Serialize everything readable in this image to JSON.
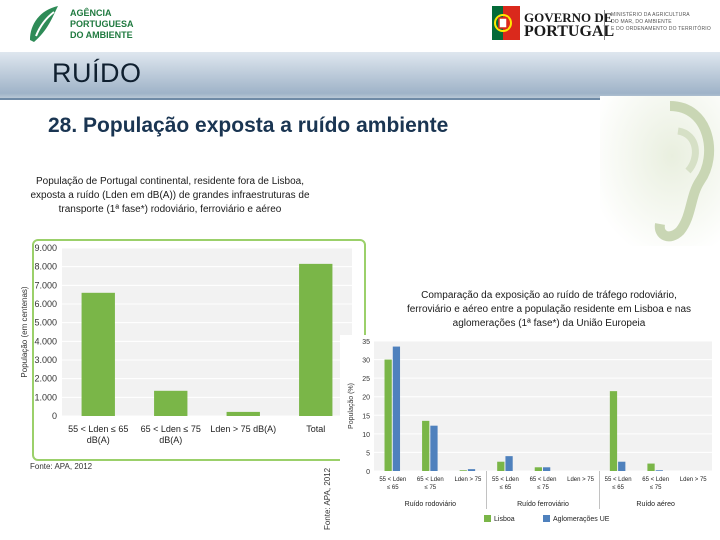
{
  "header": {
    "apa_name_lines": [
      "AGÊNCIA",
      "PORTUGUESA",
      "DO AMBIENTE"
    ],
    "gov_name_lines": [
      "GOVERNO DE",
      "PORTUGAL"
    ],
    "ministry_lines": [
      "MINISTÉRIO DA AGRICULTURA",
      "DO MAR, DO AMBIENTE",
      "E DO ORDENAMENTO DO TERRITÓRIO"
    ]
  },
  "slide": {
    "title": "RUÍDO",
    "subtitle": "28. População exposta a ruído ambiente"
  },
  "left_caption_lines": [
    "População de Portugal continental, residente fora de Lisboa,",
    "exposta a ruído (Lden em dB(A)) de grandes infraestruturas de",
    "transporte (1ª fase*) rodoviário, ferroviário e aéreo"
  ],
  "right_caption_lines": [
    "Comparação da exposição ao ruído de tráfego rodoviário,",
    "ferroviário e aéreo entre a população residente em Lisboa e nas",
    "aglomerações (1ª fase*) da União Europeia"
  ],
  "source_left": "Fonte: APA, 2012",
  "source_right": "Fonte: APA, 2012",
  "colors": {
    "lisboa": "#7ab648",
    "aglomeracoes": "#4f81bd",
    "frame": "#9bd06a"
  },
  "chart_data": [
    {
      "type": "bar",
      "ylabel": "População (em centenas)",
      "ylim": [
        0,
        9000
      ],
      "yticks": [
        0,
        1000,
        2000,
        3000,
        4000,
        5000,
        6000,
        7000,
        8000,
        9000
      ],
      "ytick_labels": [
        "0",
        "1.000",
        "2.000",
        "3.000",
        "4.000",
        "5.000",
        "6.000",
        "7.000",
        "8.000",
        "9.000"
      ],
      "categories": [
        [
          "55 < Lden ≤ 65",
          "dB(A)"
        ],
        [
          "65 < Lden ≤ 75",
          "dB(A)"
        ],
        [
          "Lden > 75 dB(A)"
        ],
        [
          "Total"
        ]
      ],
      "values": [
        6600,
        1350,
        220,
        8150
      ],
      "color": "#7ab648",
      "grid": true
    },
    {
      "type": "bar",
      "ylabel": "População (%)",
      "ylim": [
        0,
        35
      ],
      "yticks": [
        0,
        5,
        10,
        15,
        20,
        25,
        30,
        35
      ],
      "categories": [
        [
          "55 < Lden",
          "≤ 65"
        ],
        [
          "65 < Lden",
          "≤ 75"
        ],
        [
          "Lden > 75"
        ],
        [
          "55 < Lden",
          "≤ 65"
        ],
        [
          "65 < Lden",
          "≤ 75"
        ],
        [
          "Lden > 75"
        ],
        [
          "55 < Lden",
          "≤ 65"
        ],
        [
          "65 < Lden",
          "≤ 75"
        ],
        [
          "Lden > 75"
        ]
      ],
      "groups": [
        "Ruído rodoviário",
        "Ruído ferroviário",
        "Ruído aéreo"
      ],
      "series": [
        {
          "name": "Lisboa",
          "values": [
            30,
            13.5,
            0.2,
            2.5,
            1,
            0,
            21.5,
            2,
            0
          ]
        },
        {
          "name": "Aglomerações UE",
          "values": [
            33.5,
            12.2,
            0.5,
            4,
            1,
            0,
            2.5,
            0.2,
            0
          ]
        }
      ],
      "legend": "bottom",
      "grid": true
    }
  ]
}
